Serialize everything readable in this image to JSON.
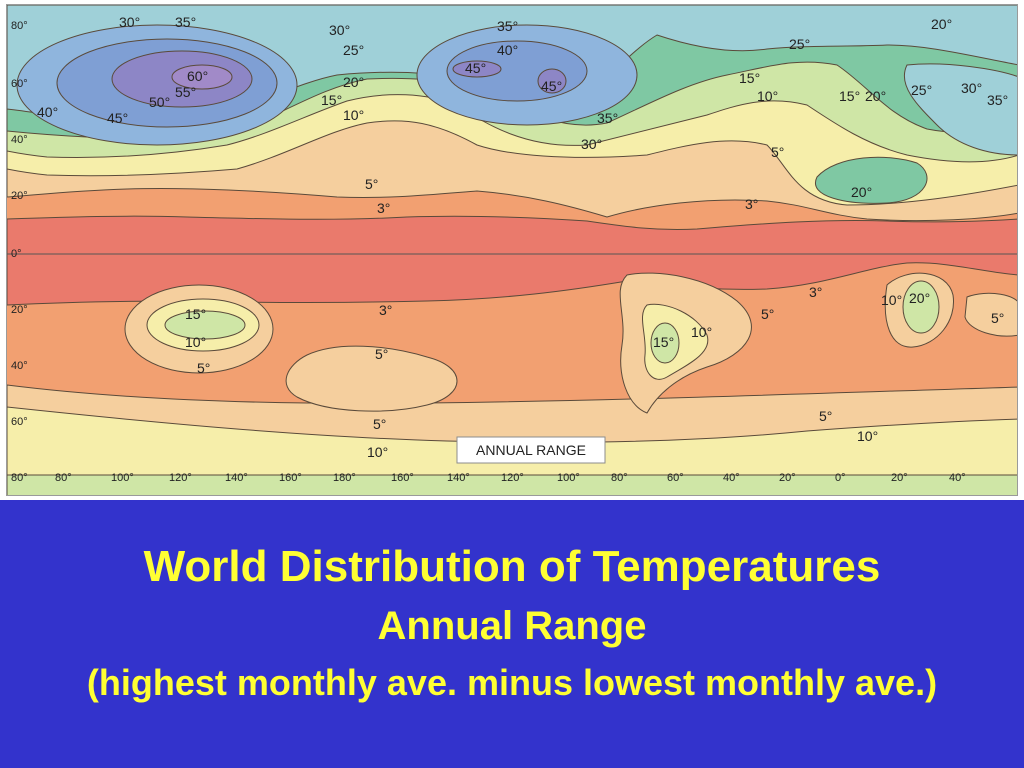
{
  "map": {
    "legend_title": "ANNUAL RANGE",
    "colors": {
      "range_0_3": "#ea7a6c",
      "range_3_5": "#f2a071",
      "range_5_10": "#f5cf9e",
      "range_10_15": "#f6eeaa",
      "range_15_20": "#cfe6a6",
      "range_20_25": "#7fc8a3",
      "range_25_30": "#9fd0d8",
      "range_30_40": "#8fb5dd",
      "range_40_50": "#7f9fd4",
      "range_50_60": "#8d86c6",
      "range_60_plus": "#a18ac8",
      "contour_line": "#5a4a3a",
      "equator_line": "#555555"
    },
    "latitude_labels": [
      "80°",
      "60°",
      "40°",
      "20°",
      "0°",
      "20°",
      "40°",
      "60°",
      "80°"
    ],
    "longitude_labels": [
      "80°",
      "100°",
      "120°",
      "140°",
      "160°",
      "180°",
      "160°",
      "140°",
      "120°",
      "100°",
      "80°",
      "60°",
      "40°",
      "20°",
      "0°",
      "20°",
      "40°"
    ],
    "contour_labels": [
      "30°",
      "35°",
      "60°",
      "55°",
      "50°",
      "40°",
      "45°",
      "30°",
      "25°",
      "20°",
      "15°",
      "10°",
      "35°",
      "40°",
      "45°",
      "45°",
      "35°",
      "30°",
      "20°",
      "25°",
      "15°",
      "10°",
      "15°",
      "20°",
      "25°",
      "30°",
      "35°",
      "5°",
      "3°",
      "5°",
      "20°",
      "3°",
      "15°",
      "10°",
      "5°",
      "3°",
      "5°",
      "3°",
      "15°",
      "10°",
      "5°",
      "10°",
      "20°",
      "5°",
      "5°",
      "10°",
      "5°",
      "10°"
    ]
  },
  "caption": {
    "title": "World Distribution of Temperatures",
    "subtitle": "Annual Range",
    "note": "(highest monthly ave. minus lowest monthly ave.)"
  }
}
